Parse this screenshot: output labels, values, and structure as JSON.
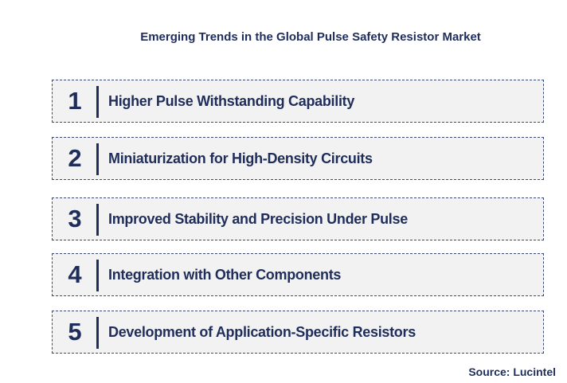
{
  "title": "Emerging Trends in the Global Pulse Safety Resistor Market",
  "items": [
    {
      "number": "1",
      "label": "Higher Pulse Withstanding Capability"
    },
    {
      "number": "2",
      "label": "Miniaturization for High-Density Circuits"
    },
    {
      "number": "3",
      "label": "Improved Stability and Precision Under Pulse"
    },
    {
      "number": "4",
      "label": "Integration with Other Components"
    },
    {
      "number": "5",
      "label": "Development of Application-Specific Resistors"
    }
  ],
  "source": "Source: Lucintel",
  "colors": {
    "text": "#1f2d5a",
    "box_fill": "#f2f2f2",
    "box_border": "#3b4a73"
  }
}
